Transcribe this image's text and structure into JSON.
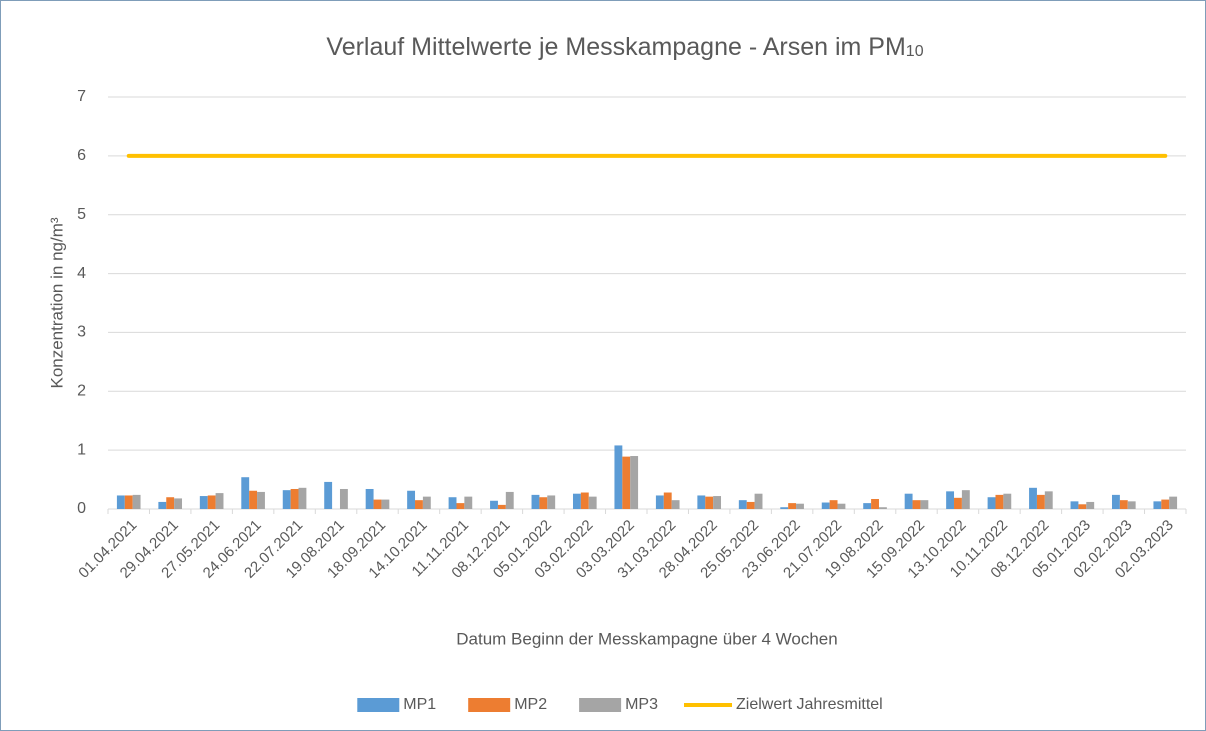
{
  "chart_data": {
    "type": "bar",
    "title": "Verlauf Mittelwerte je Messkampagne - Arsen im PM",
    "title_subscript": "10",
    "y_label": "Konzentration in ng/m³",
    "x_label": "Datum Beginn der Messkampagne über 4 Wochen",
    "categories": [
      "01.04.2021",
      "29.04.2021",
      "27.05.2021",
      "24.06.2021",
      "22.07.2021",
      "19.08.2021",
      "18.09.2021",
      "14.10.2021",
      "11.11.2021",
      "08.12.2021",
      "05.01.2022",
      "03.02.2022",
      "03.03.2022",
      "31.03.2022",
      "28.04.2022",
      "25.05.2022",
      "23.06.2022",
      "21.07.2022",
      "19.08.2022",
      "15.09.2022",
      "13.10.2022",
      "10.11.2022",
      "08.12.2022",
      "05.01.2023",
      "02.02.2023",
      "02.03.2023"
    ],
    "series": [
      {
        "name": "MP1",
        "color": "#5b9bd5",
        "type": "bar",
        "values": [
          0.23,
          0.12,
          0.22,
          0.54,
          0.32,
          0.46,
          0.34,
          0.31,
          0.2,
          0.14,
          0.24,
          0.26,
          1.08,
          0.23,
          0.23,
          0.15,
          0.03,
          0.11,
          0.1,
          0.26,
          0.3,
          0.2,
          0.36,
          0.13,
          0.24,
          0.13
        ]
      },
      {
        "name": "MP2",
        "color": "#ed7d31",
        "type": "bar",
        "values": [
          0.23,
          0.2,
          0.23,
          0.31,
          0.34,
          null,
          0.16,
          0.15,
          0.1,
          0.07,
          0.2,
          0.28,
          0.89,
          0.28,
          0.21,
          0.12,
          0.1,
          0.15,
          0.17,
          0.15,
          0.19,
          0.24,
          0.24,
          0.08,
          0.15,
          0.16
        ]
      },
      {
        "name": "MP3",
        "color": "#a5a5a5",
        "type": "bar",
        "values": [
          0.24,
          0.18,
          0.27,
          0.29,
          0.36,
          0.34,
          0.16,
          0.21,
          0.21,
          0.29,
          0.23,
          0.21,
          0.9,
          0.15,
          0.22,
          0.26,
          0.09,
          0.09,
          0.03,
          0.15,
          0.32,
          0.26,
          0.3,
          0.12,
          0.13,
          0.21
        ]
      },
      {
        "name": "Zielwert Jahresmittel",
        "color": "#ffc000",
        "type": "line",
        "values": [
          6,
          6,
          6,
          6,
          6,
          6,
          6,
          6,
          6,
          6,
          6,
          6,
          6,
          6,
          6,
          6,
          6,
          6,
          6,
          6,
          6,
          6,
          6,
          6,
          6,
          6
        ]
      }
    ],
    "ylim": [
      0,
      7
    ],
    "yticks": [
      0,
      1,
      2,
      3,
      4,
      5,
      6,
      7
    ],
    "grid": true,
    "legend": "bottom"
  }
}
